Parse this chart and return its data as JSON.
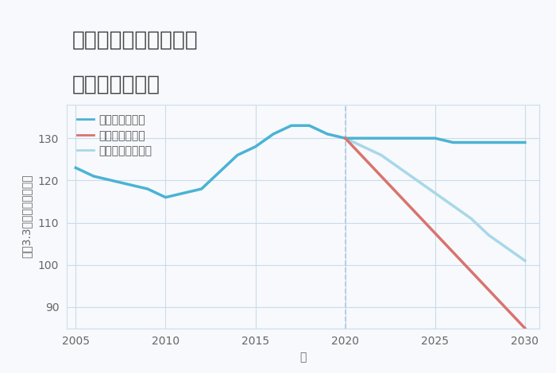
{
  "title_line1": "兵庫県西宮市大島町の",
  "title_line2": "土地の価格推移",
  "xlabel": "年",
  "ylabel": "坪（3.3㎡）単価（万円）",
  "background_color": "#f7f9fc",
  "plot_bg_color": "#f7f9fc",
  "ylim": [
    85,
    138
  ],
  "yticks": [
    90,
    100,
    110,
    120,
    130
  ],
  "good_scenario": {
    "label": "グッドシナリオ",
    "color": "#4ab3d4",
    "linewidth": 2.5,
    "x": [
      2005,
      2006,
      2007,
      2008,
      2009,
      2010,
      2011,
      2012,
      2013,
      2014,
      2015,
      2016,
      2017,
      2018,
      2019,
      2020,
      2021,
      2022,
      2023,
      2024,
      2025,
      2026,
      2027,
      2028,
      2029,
      2030
    ],
    "y": [
      123,
      121,
      120,
      119,
      118,
      116,
      117,
      118,
      122,
      126,
      128,
      131,
      133,
      133,
      131,
      130,
      130,
      130,
      130,
      130,
      130,
      129,
      129,
      129,
      129,
      129
    ]
  },
  "bad_scenario": {
    "label": "バッドシナリオ",
    "color": "#d9736e",
    "linewidth": 2.5,
    "x": [
      2020,
      2030
    ],
    "y": [
      130,
      85
    ]
  },
  "normal_scenario": {
    "label": "ノーマルシナリオ",
    "color": "#a8d8e8",
    "linewidth": 2.5,
    "x": [
      2020,
      2022,
      2024,
      2025,
      2026,
      2027,
      2028,
      2029,
      2030
    ],
    "y": [
      130,
      126,
      120,
      117,
      114,
      111,
      107,
      104,
      101
    ]
  },
  "vline_x": 2020,
  "vline_color": "#b0c8e0",
  "grid_color": "#c8dcea",
  "title_fontsize": 19,
  "label_fontsize": 10,
  "tick_fontsize": 10,
  "legend_fontsize": 10,
  "xticks": [
    2005,
    2010,
    2015,
    2020,
    2025,
    2030
  ],
  "xlim": [
    2004.5,
    2030.8
  ]
}
